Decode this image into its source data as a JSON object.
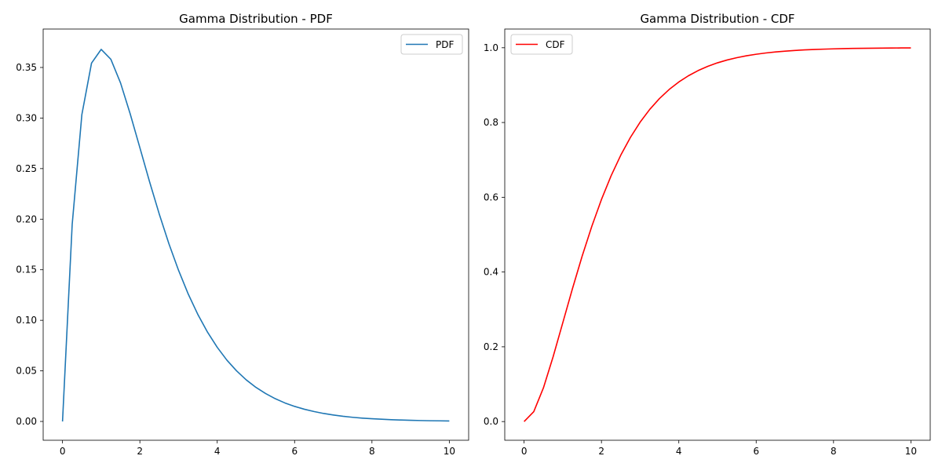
{
  "chart_data": [
    {
      "type": "line",
      "title": "Gamma Distribution - PDF",
      "xlabel": "",
      "ylabel": "",
      "xlim": [
        -0.5,
        10.5
      ],
      "ylim": [
        -0.0186,
        0.388
      ],
      "xticks": [
        0,
        2,
        4,
        6,
        8,
        10
      ],
      "xtick_labels": [
        "0",
        "2",
        "4",
        "6",
        "8",
        "10"
      ],
      "yticks": [
        0,
        0.05,
        0.1,
        0.15,
        0.2,
        0.25,
        0.3,
        0.35
      ],
      "ytick_labels": [
        "0.00",
        "0.05",
        "0.10",
        "0.15",
        "0.20",
        "0.25",
        "0.30",
        "0.35"
      ],
      "grid": false,
      "legend_position": "top-right",
      "series": [
        {
          "name": "PDF",
          "color": "#1f77b4",
          "x": [
            0,
            0.25,
            0.5,
            0.75,
            1,
            1.25,
            1.5,
            1.75,
            2,
            2.25,
            2.5,
            2.75,
            3,
            3.25,
            3.5,
            3.75,
            4,
            4.25,
            4.5,
            4.75,
            5,
            5.25,
            5.5,
            5.75,
            6,
            6.25,
            6.5,
            6.75,
            7,
            7.25,
            7.5,
            7.75,
            8,
            8.25,
            8.5,
            8.75,
            9,
            9.25,
            9.5,
            9.75,
            10
          ],
          "y": [
            0,
            0.1947,
            0.3033,
            0.3543,
            0.3679,
            0.3581,
            0.3347,
            0.3041,
            0.2707,
            0.2371,
            0.2052,
            0.1758,
            0.1494,
            0.126,
            0.1057,
            0.0882,
            0.0733,
            0.0606,
            0.05,
            0.0411,
            0.0337,
            0.0276,
            0.0225,
            0.0183,
            0.0149,
            0.0121,
            0.0098,
            0.0079,
            0.0064,
            0.0051,
            0.0041,
            0.0033,
            0.0027,
            0.0022,
            0.0017,
            0.0014,
            0.0011,
            0.0009,
            0.0007,
            0.0006,
            0.0005
          ]
        }
      ]
    },
    {
      "type": "line",
      "title": "Gamma Distribution - CDF",
      "xlabel": "",
      "ylabel": "",
      "xlim": [
        -0.5,
        10.5
      ],
      "ylim": [
        -0.05,
        1.05
      ],
      "xticks": [
        0,
        2,
        4,
        6,
        8,
        10
      ],
      "xtick_labels": [
        "0",
        "2",
        "4",
        "6",
        "8",
        "10"
      ],
      "yticks": [
        0,
        0.2,
        0.4,
        0.6,
        0.8,
        1.0
      ],
      "ytick_labels": [
        "0.0",
        "0.2",
        "0.4",
        "0.6",
        "0.8",
        "1.0"
      ],
      "grid": false,
      "legend_position": "top-left",
      "series": [
        {
          "name": "CDF",
          "color": "#ff0000",
          "x": [
            0,
            0.25,
            0.5,
            0.75,
            1,
            1.25,
            1.5,
            1.75,
            2,
            2.25,
            2.5,
            2.75,
            3,
            3.25,
            3.5,
            3.75,
            4,
            4.25,
            4.5,
            4.75,
            5,
            5.25,
            5.5,
            5.75,
            6,
            6.25,
            6.5,
            6.75,
            7,
            7.25,
            7.5,
            7.75,
            8,
            8.25,
            8.5,
            8.75,
            9,
            9.25,
            9.5,
            9.75,
            10
          ],
          "y": [
            0,
            0.0265,
            0.0902,
            0.1733,
            0.2642,
            0.3554,
            0.4422,
            0.5221,
            0.594,
            0.6575,
            0.7127,
            0.7603,
            0.8009,
            0.8352,
            0.8641,
            0.8883,
            0.9084,
            0.9251,
            0.9389,
            0.9502,
            0.9596,
            0.9672,
            0.9734,
            0.9785,
            0.9826,
            0.986,
            0.9887,
            0.9909,
            0.9927,
            0.9942,
            0.9953,
            0.9962,
            0.997,
            0.9976,
            0.9981,
            0.9985,
            0.9988,
            0.999,
            0.9992,
            0.9994,
            0.9995
          ]
        }
      ]
    }
  ]
}
